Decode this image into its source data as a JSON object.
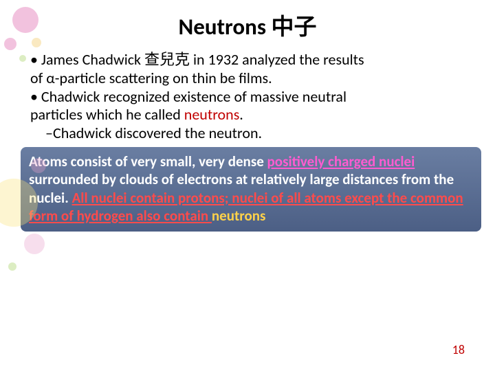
{
  "title": "Neutrons 中子",
  "bullets": {
    "line1a": "• James Chadwick 查兒克 in 1932 analyzed the results",
    "line1b": "of α-particle scattering on thin be films.",
    "line2a": "• Chadwick recognized existence of  massive neutral",
    "line2b": "particles which he called ",
    "neutrons_word": "neutrons",
    "period": ".",
    "sub1": "–Chadwick discovered the neutron."
  },
  "box": {
    "part1": "Atoms consist of very small, very dense ",
    "hl_a": "positively charged nuclei",
    "part2": " surrounded by clouds of electrons at relatively large distances from the nuclei. ",
    "hl_b": "All nuclei contain protons; nuclei of all atoms except the common form of hydrogen also contain ",
    "hl_c": "neutrons"
  },
  "page_number": "18"
}
